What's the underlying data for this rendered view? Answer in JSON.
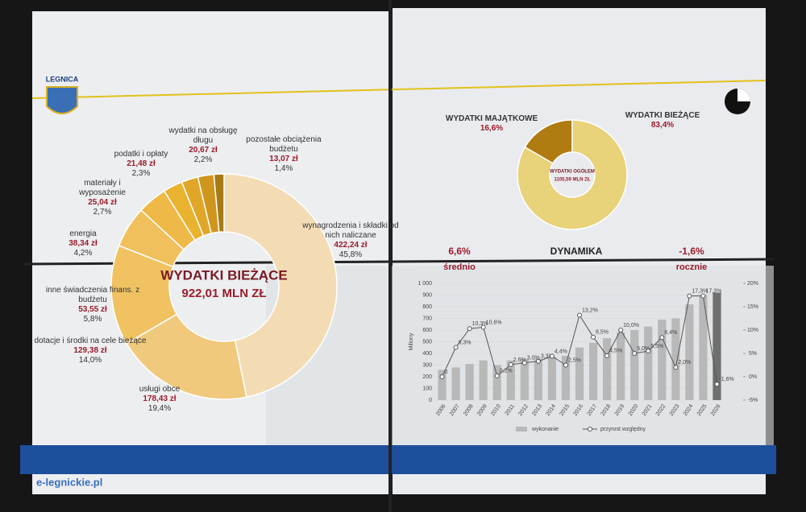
{
  "header": {
    "city": "LEGNICA"
  },
  "watermark": "e-legnickie.pl",
  "chart_data": [
    {
      "type": "pie",
      "title": "WYDATKI BIEŻĄCE",
      "subtitle": "922,01 MLN ZŁ",
      "categories": [
        "wynagrodzenia i składki od nich naliczane",
        "usługi obce",
        "dotacje i środki na cele bieżące",
        "inne świadczenia finans. z budżetu",
        "energia",
        "materiały i wyposażenie",
        "podatki i opłaty",
        "wydatki na obsługę długu",
        "pozostałe obciążenia budżetu"
      ],
      "values": [
        422.24,
        178.43,
        129.38,
        53.55,
        38.34,
        25.04,
        21.48,
        20.67,
        13.07
      ],
      "value_labels": [
        "422,24 zł",
        "178,43 zł",
        "129,38 zł",
        "53,55 zł",
        "38,34 zł",
        "25,04 zł",
        "21,48 zł",
        "20,67 zł",
        "13,07 zł"
      ],
      "shares": [
        45.8,
        19.4,
        14.0,
        5.8,
        4.2,
        2.7,
        2.3,
        2.2,
        1.4
      ],
      "share_labels": [
        "45,8%",
        "19,4%",
        "14,0%",
        "5,8%",
        "4,2%",
        "2,7%",
        "2,3%",
        "2,2%",
        "1,4%"
      ],
      "colors": [
        "#f3dcb4",
        "#f0c97c",
        "#f1c262",
        "#f0c05c",
        "#eeb946",
        "#e9b22f",
        "#e0a628",
        "#cf961e",
        "#a87a16"
      ]
    },
    {
      "type": "pie",
      "title": "WYDATKI OGÓŁEM",
      "subtitle": "1105,59 MLN ZŁ",
      "categories": [
        "WYDATKI MAJĄTKOWE",
        "WYDATKI BIEŻĄCE"
      ],
      "values": [
        16.6,
        83.4
      ],
      "value_labels": [
        "16,6%",
        "83,4%"
      ],
      "colors": [
        "#b07c12",
        "#e8d27a"
      ]
    },
    {
      "type": "bar-line",
      "title": "DYNAMIKA",
      "annotations": [
        "6,6%",
        "średnio",
        "-1,6%",
        "rocznie"
      ],
      "y_label": "Miliony",
      "categories": [
        "2006",
        "2007",
        "2008",
        "2009",
        "2010",
        "2011",
        "2012",
        "2013",
        "2014",
        "2015",
        "2016",
        "2017",
        "2018",
        "2019",
        "2020",
        "2021",
        "2022",
        "2023",
        "2024",
        "2025",
        "2026"
      ],
      "series": [
        {
          "name": "wykonanie",
          "type": "bar",
          "color": "#b8b8b8",
          "values": [
            260,
            280,
            310,
            340,
            300,
            340,
            350,
            355,
            370,
            380,
            450,
            490,
            530,
            580,
            600,
            630,
            690,
            700,
            820,
            900,
            920
          ]
        },
        {
          "name": "przyrost względny",
          "type": "line",
          "axis": "y2",
          "color": "#555555",
          "values": [
            0,
            6.3,
            10.3,
            10.6,
            0.2,
            2.6,
            3.0,
            3.3,
            4.4,
            2.5,
            13.2,
            8.5,
            4.5,
            10.0,
            5.0,
            5.5,
            8.4,
            2.0,
            17.3,
            17.3,
            -1.6
          ],
          "value_labels": [
            "0",
            "6,3%",
            "10,3%",
            "10,6%",
            "0,2%",
            "2,6%",
            "3,0%",
            "3,3%",
            "4,4%",
            "2,5%",
            "13,2%",
            "8,5%",
            "4,5%",
            "10,0%",
            "5,0%",
            "5,5%",
            "8,4%",
            "2,0%",
            "17,3%",
            "17,3%",
            "-1,6%"
          ]
        }
      ],
      "ylim": [
        0,
        1000
      ],
      "yticks": [
        0,
        100,
        200,
        300,
        400,
        500,
        600,
        700,
        800,
        900,
        {
          "value": 1000,
          "label": "1 000"
        }
      ],
      "y2lim": [
        -5,
        20
      ],
      "y2ticks": [
        {
          "value": -5,
          "label": "-5%"
        },
        {
          "value": 0,
          "label": "0%"
        },
        {
          "value": 5,
          "label": "5%"
        },
        {
          "value": 10,
          "label": "10%"
        },
        {
          "value": 15,
          "label": "15%"
        },
        {
          "value": 20,
          "label": "20%"
        }
      ],
      "grid": true
    }
  ]
}
